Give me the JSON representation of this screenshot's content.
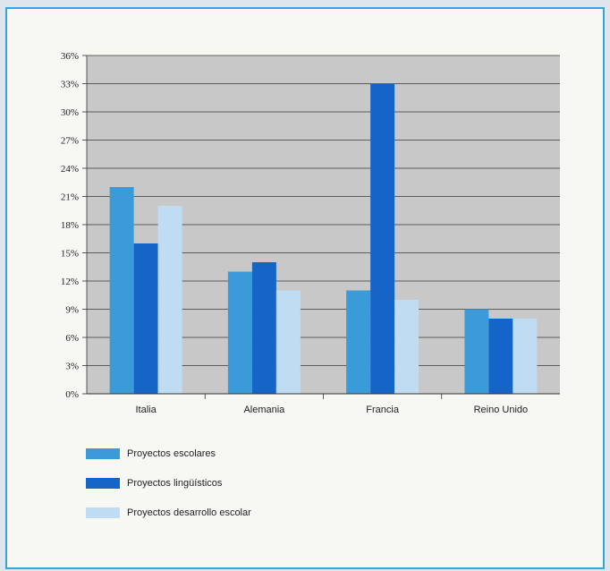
{
  "chart_data": {
    "type": "bar",
    "categories": [
      "Italia",
      "Alemania",
      "Francia",
      "Reino Unido"
    ],
    "series": [
      {
        "name": "Proyectos escolares",
        "values": [
          22,
          13,
          11,
          9
        ],
        "color": "#3b9bd9"
      },
      {
        "name": "Proyectos lingüísticos",
        "values": [
          16,
          14,
          33,
          8
        ],
        "color": "#1565c8"
      },
      {
        "name": "Proyectos desarrollo escolar",
        "values": [
          20,
          11,
          10,
          8
        ],
        "color": "#bfdcf2"
      }
    ],
    "yticks": [
      "0%",
      "3%",
      "6%",
      "9%",
      "12%",
      "15%",
      "18%",
      "21%",
      "24%",
      "27%",
      "30%",
      "33%",
      "36%"
    ],
    "ylim": [
      0,
      36
    ],
    "grid": true,
    "legend_position": "bottom-left",
    "plot_background": "#c8c8c8"
  }
}
